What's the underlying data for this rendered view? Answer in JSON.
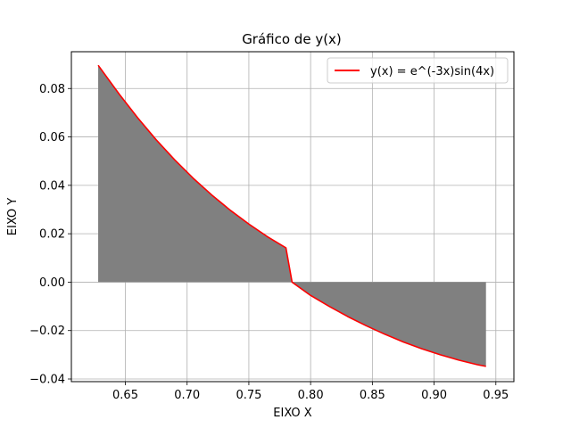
{
  "chart_data": {
    "type": "line",
    "title": "Gráfico de y(x)",
    "xlabel": "EIXO X",
    "ylabel": "EIXO Y",
    "xlim": [
      0.6063,
      0.9646
    ],
    "ylim": [
      -0.0411,
      0.0952
    ],
    "x_ticks": [
      0.65,
      0.7,
      0.75,
      0.8,
      0.85,
      0.9,
      0.95
    ],
    "x_tick_labels": [
      "0.65",
      "0.70",
      "0.75",
      "0.80",
      "0.85",
      "0.90",
      "0.95"
    ],
    "y_ticks": [
      -0.04,
      -0.02,
      0.0,
      0.02,
      0.04,
      0.06,
      0.08
    ],
    "y_tick_labels": [
      "−0.04",
      "−0.02",
      "0.00",
      "0.02",
      "0.04",
      "0.06",
      "0.08"
    ],
    "grid": true,
    "legend_position": "top-right",
    "fill_between_zero": true,
    "fill_color": "#808080",
    "series": [
      {
        "name": "y(x) = e^(-3x)sin(4x)",
        "color": "#ff0000",
        "x": [
          0.628,
          0.645,
          0.66,
          0.675,
          0.69,
          0.705,
          0.72,
          0.735,
          0.75,
          0.765,
          0.78,
          0.785,
          0.8,
          0.815,
          0.83,
          0.845,
          0.86,
          0.875,
          0.89,
          0.905,
          0.92,
          0.935,
          0.942
        ],
        "y": [
          0.0896,
          0.0777,
          0.0679,
          0.0588,
          0.0505,
          0.0429,
          0.036,
          0.0297,
          0.024,
          0.0188,
          0.0142,
          0.0,
          -0.0055,
          -0.01,
          -0.0142,
          -0.018,
          -0.0215,
          -0.0247,
          -0.0275,
          -0.03,
          -0.0322,
          -0.0341,
          -0.0348
        ]
      }
    ]
  }
}
